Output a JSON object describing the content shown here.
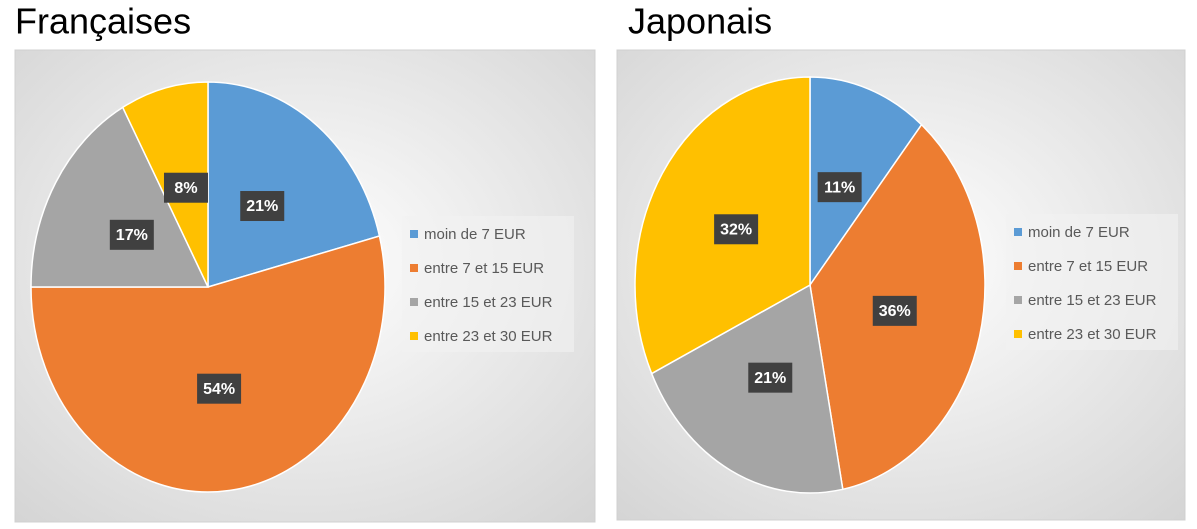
{
  "chart_data": [
    {
      "type": "pie",
      "title": "Françaises",
      "categories": [
        "moin de 7 EUR",
        "entre 7 et 15 EUR",
        "entre 15 et 23 EUR",
        "entre 23 et 30 EUR"
      ],
      "values": [
        21,
        54,
        17,
        8
      ],
      "value_labels": [
        "21%",
        "54%",
        "17%",
        "8%"
      ],
      "colors": [
        "#5b9bd5",
        "#ed7d31",
        "#a5a5a5",
        "#ffc000"
      ]
    },
    {
      "type": "pie",
      "title": "Japonais",
      "categories": [
        "moin de 7 EUR",
        "entre 7 et 15 EUR",
        "entre 15 et 23 EUR",
        "entre 23 et 30 EUR"
      ],
      "values": [
        11,
        36,
        21,
        32
      ],
      "value_labels": [
        "11%",
        "36%",
        "21%",
        "32%"
      ],
      "colors": [
        "#5b9bd5",
        "#ed7d31",
        "#a5a5a5",
        "#ffc000"
      ]
    }
  ]
}
